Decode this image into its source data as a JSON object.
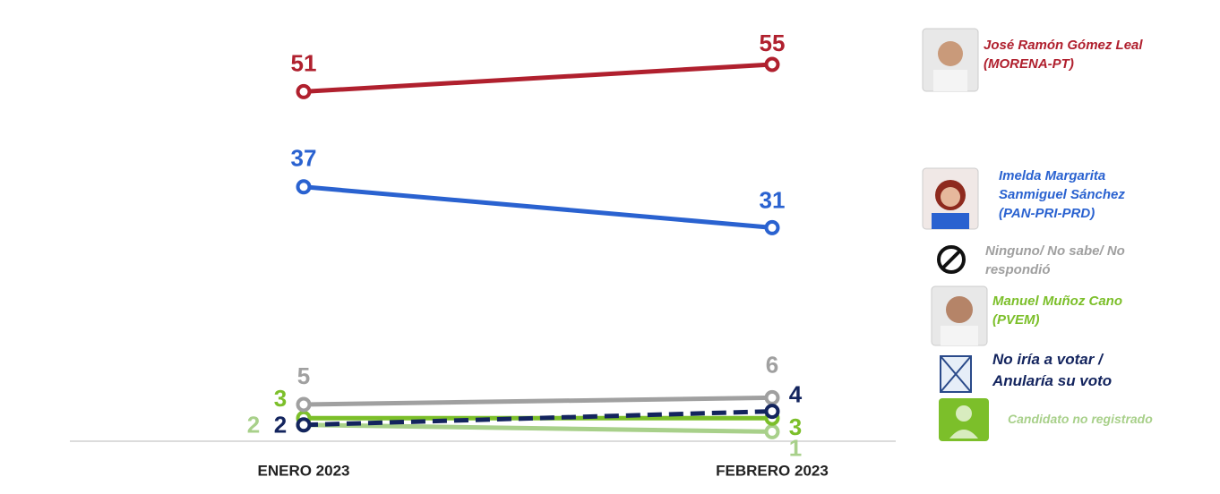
{
  "chart_data": {
    "type": "line",
    "categories": [
      "ENERO 2023",
      "FEBRERO 2023"
    ],
    "ylim": [
      0,
      60
    ],
    "series": [
      {
        "name": "José Ramón Gómez Leal (MORENA-PT)",
        "color": "#b0202e",
        "values": [
          51,
          55
        ]
      },
      {
        "name": "Imelda Margarita Sanmiguel Sánchez (PAN-PRI-PRD)",
        "color": "#2a62d0",
        "values": [
          37,
          31
        ]
      },
      {
        "name": "Ninguno/ No sabe/ No respondió",
        "color": "#a0a0a0",
        "values": [
          5,
          6
        ]
      },
      {
        "name": "Manuel Muñoz Cano (PVEM)",
        "color": "#7cbf2a",
        "values": [
          3,
          3
        ]
      },
      {
        "name": "No iría a votar / Anularía su voto",
        "color": "#13245e",
        "values": [
          2,
          4
        ],
        "line_style": "dashed"
      },
      {
        "name": "Candidato no registrado",
        "color": "#a8d08a",
        "values": [
          2,
          1
        ]
      }
    ]
  }
}
